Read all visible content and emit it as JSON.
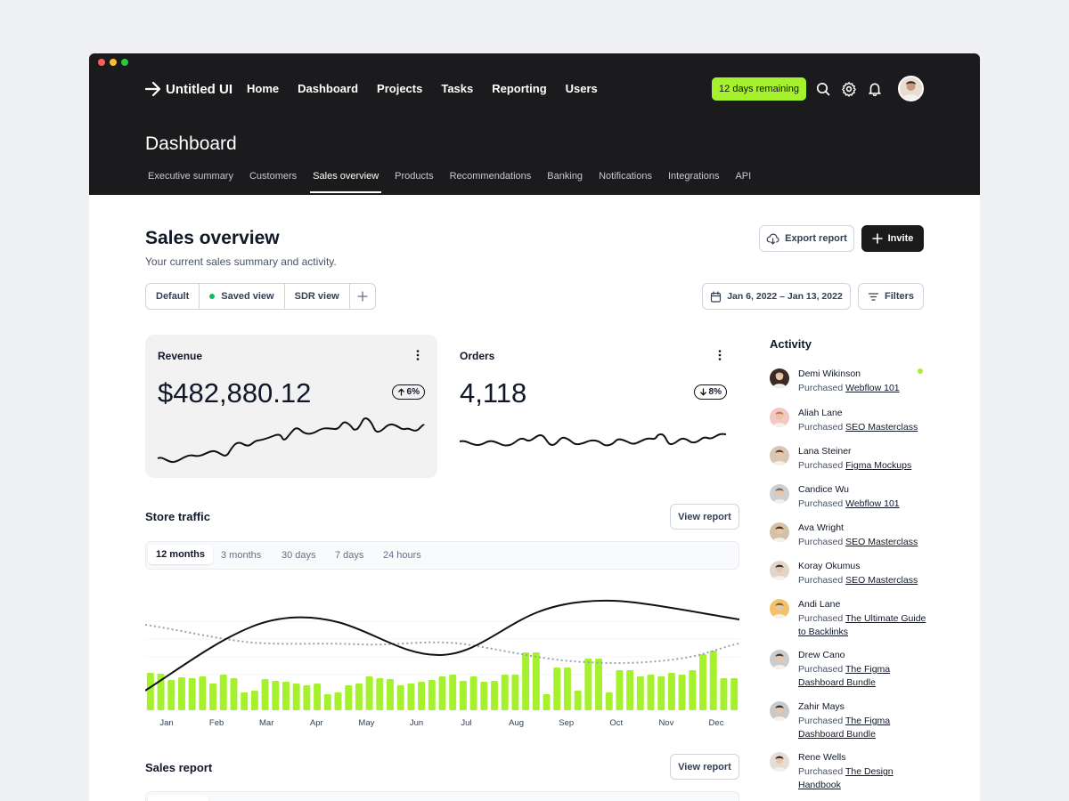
{
  "app": {
    "name": "Untitled UI"
  },
  "nav": [
    "Home",
    "Dashboard",
    "Projects",
    "Tasks",
    "Reporting",
    "Users"
  ],
  "trial_badge": "12 days remaining",
  "header_icons": [
    "search-icon",
    "gear-icon",
    "bell-icon"
  ],
  "page_title": "Dashboard",
  "subtabs": [
    "Executive summary",
    "Customers",
    "Sales overview",
    "Products",
    "Recommendations",
    "Banking",
    "Notifications",
    "Integrations",
    "API"
  ],
  "active_subtab": "Sales overview",
  "section": {
    "title": "Sales overview",
    "subtitle": "Your current sales summary and activity."
  },
  "actions": {
    "export": "Export report",
    "invite": "Invite"
  },
  "views": [
    "Default",
    "Saved view",
    "SDR view"
  ],
  "date_range": "Jan 6, 2022 – Jan 13, 2022",
  "filters_label": "Filters",
  "revenue": {
    "label": "Revenue",
    "value": "$482,880.12",
    "change": "6%",
    "direction": "up"
  },
  "orders": {
    "label": "Orders",
    "value": "4,118",
    "change": "8%",
    "direction": "down"
  },
  "store_traffic": {
    "title": "Store traffic",
    "button": "View report",
    "ranges": [
      "12 months",
      "3 months",
      "30 days",
      "7 days",
      "24 hours"
    ],
    "active_range": "12 months"
  },
  "sales_report": {
    "title": "Sales report",
    "button": "View report"
  },
  "chart_data": {
    "type": "bar",
    "months": [
      "Jan",
      "Feb",
      "Mar",
      "Apr",
      "May",
      "Jun",
      "Jul",
      "Aug",
      "Sep",
      "Oct",
      "Nov",
      "Dec"
    ],
    "bar_values": [
      42,
      41,
      34,
      37,
      36,
      38,
      30,
      40,
      36,
      20,
      22,
      35,
      33,
      32,
      30,
      28,
      30,
      18,
      20,
      28,
      30,
      38,
      36,
      35,
      28,
      30,
      32,
      34,
      38,
      40,
      33,
      38,
      32,
      33,
      40,
      40,
      65,
      65,
      18,
      48,
      48,
      22,
      58,
      58,
      20,
      45,
      45,
      38,
      40,
      38,
      42,
      40,
      45,
      63,
      67,
      36,
      36
    ],
    "ylim": [
      0,
      100
    ],
    "accent": "#a6f12e",
    "grid": true
  },
  "activity": {
    "title": "Activity",
    "items": [
      {
        "name": "Demi Wikinson",
        "action": "Purchased",
        "item": "Webflow 101",
        "online": true
      },
      {
        "name": "Aliah Lane",
        "action": "Purchased",
        "item": "SEO Masterclass"
      },
      {
        "name": "Lana Steiner",
        "action": "Purchased",
        "item": "Figma Mockups"
      },
      {
        "name": "Candice Wu",
        "action": "Purchased",
        "item": "Webflow 101"
      },
      {
        "name": "Ava Wright",
        "action": "Purchased",
        "item": "SEO Masterclass"
      },
      {
        "name": "Koray Okumus",
        "action": "Purchased",
        "item": "SEO Masterclass"
      },
      {
        "name": "Andi Lane",
        "action": "Purchased",
        "item": "The Ultimate Guide to Backlinks"
      },
      {
        "name": "Drew Cano",
        "action": "Purchased",
        "item": "The Figma Dashboard Bundle"
      },
      {
        "name": "Zahir Mays",
        "action": "Purchased",
        "item": "The Figma Dashboard Bundle"
      },
      {
        "name": "Rene Wells",
        "action": "Purchased",
        "item": "The Design Handbook"
      }
    ]
  }
}
